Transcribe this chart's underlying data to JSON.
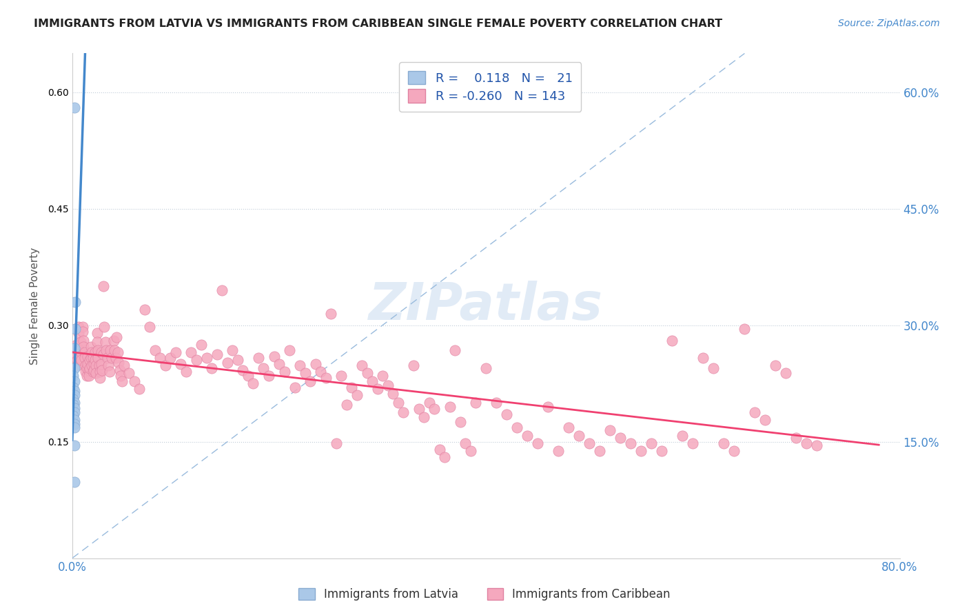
{
  "title": "IMMIGRANTS FROM LATVIA VS IMMIGRANTS FROM CARIBBEAN SINGLE FEMALE POVERTY CORRELATION CHART",
  "source": "Source: ZipAtlas.com",
  "ylabel": "Single Female Poverty",
  "xlim": [
    0.0,
    0.8
  ],
  "ylim": [
    0.0,
    0.65
  ],
  "yticks_right": [
    0.15,
    0.3,
    0.45,
    0.6
  ],
  "ytick_labels_right": [
    "15.0%",
    "30.0%",
    "45.0%",
    "60.0%"
  ],
  "watermark": "ZIPatlas",
  "color_latvia": "#aac8e8",
  "color_caribbean": "#f5a8be",
  "color_trend_latvia": "#4488cc",
  "color_trend_caribbean": "#f04070",
  "color_diagonal": "#99bbdd",
  "scatter_latvia": [
    [
      0.002,
      0.58
    ],
    [
      0.003,
      0.33
    ],
    [
      0.003,
      0.295
    ],
    [
      0.002,
      0.27
    ],
    [
      0.002,
      0.245
    ],
    [
      0.001,
      0.235
    ],
    [
      0.002,
      0.228
    ],
    [
      0.001,
      0.22
    ],
    [
      0.002,
      0.215
    ],
    [
      0.002,
      0.21
    ],
    [
      0.001,
      0.205
    ],
    [
      0.002,
      0.2
    ],
    [
      0.001,
      0.198
    ],
    [
      0.002,
      0.193
    ],
    [
      0.002,
      0.188
    ],
    [
      0.001,
      0.183
    ],
    [
      0.002,
      0.178
    ],
    [
      0.002,
      0.173
    ],
    [
      0.002,
      0.168
    ],
    [
      0.002,
      0.145
    ],
    [
      0.002,
      0.098
    ]
  ],
  "scatter_caribbean": [
    [
      0.003,
      0.268
    ],
    [
      0.004,
      0.262
    ],
    [
      0.004,
      0.275
    ],
    [
      0.005,
      0.255
    ],
    [
      0.005,
      0.248
    ],
    [
      0.006,
      0.29
    ],
    [
      0.006,
      0.298
    ],
    [
      0.007,
      0.268
    ],
    [
      0.007,
      0.258
    ],
    [
      0.008,
      0.278
    ],
    [
      0.009,
      0.265
    ],
    [
      0.009,
      0.255
    ],
    [
      0.01,
      0.298
    ],
    [
      0.01,
      0.292
    ],
    [
      0.011,
      0.28
    ],
    [
      0.011,
      0.272
    ],
    [
      0.012,
      0.265
    ],
    [
      0.012,
      0.258
    ],
    [
      0.013,
      0.248
    ],
    [
      0.013,
      0.24
    ],
    [
      0.014,
      0.235
    ],
    [
      0.014,
      0.245
    ],
    [
      0.015,
      0.26
    ],
    [
      0.015,
      0.25
    ],
    [
      0.016,
      0.242
    ],
    [
      0.016,
      0.235
    ],
    [
      0.017,
      0.255
    ],
    [
      0.017,
      0.245
    ],
    [
      0.018,
      0.272
    ],
    [
      0.018,
      0.258
    ],
    [
      0.019,
      0.265
    ],
    [
      0.019,
      0.248
    ],
    [
      0.02,
      0.24
    ],
    [
      0.02,
      0.258
    ],
    [
      0.021,
      0.25
    ],
    [
      0.021,
      0.242
    ],
    [
      0.022,
      0.265
    ],
    [
      0.022,
      0.255
    ],
    [
      0.023,
      0.248
    ],
    [
      0.023,
      0.238
    ],
    [
      0.024,
      0.29
    ],
    [
      0.024,
      0.278
    ],
    [
      0.025,
      0.268
    ],
    [
      0.025,
      0.258
    ],
    [
      0.026,
      0.248
    ],
    [
      0.027,
      0.24
    ],
    [
      0.027,
      0.232
    ],
    [
      0.028,
      0.265
    ],
    [
      0.028,
      0.25
    ],
    [
      0.029,
      0.242
    ],
    [
      0.03,
      0.35
    ],
    [
      0.03,
      0.262
    ],
    [
      0.031,
      0.298
    ],
    [
      0.032,
      0.278
    ],
    [
      0.033,
      0.268
    ],
    [
      0.034,
      0.258
    ],
    [
      0.035,
      0.248
    ],
    [
      0.036,
      0.24
    ],
    [
      0.037,
      0.268
    ],
    [
      0.038,
      0.258
    ],
    [
      0.04,
      0.28
    ],
    [
      0.041,
      0.268
    ],
    [
      0.042,
      0.258
    ],
    [
      0.043,
      0.285
    ],
    [
      0.044,
      0.265
    ],
    [
      0.045,
      0.252
    ],
    [
      0.046,
      0.242
    ],
    [
      0.047,
      0.235
    ],
    [
      0.048,
      0.228
    ],
    [
      0.05,
      0.248
    ],
    [
      0.055,
      0.238
    ],
    [
      0.06,
      0.228
    ],
    [
      0.065,
      0.218
    ],
    [
      0.07,
      0.32
    ],
    [
      0.075,
      0.298
    ],
    [
      0.08,
      0.268
    ],
    [
      0.085,
      0.258
    ],
    [
      0.09,
      0.248
    ],
    [
      0.095,
      0.258
    ],
    [
      0.1,
      0.265
    ],
    [
      0.105,
      0.25
    ],
    [
      0.11,
      0.24
    ],
    [
      0.115,
      0.265
    ],
    [
      0.12,
      0.255
    ],
    [
      0.125,
      0.275
    ],
    [
      0.13,
      0.258
    ],
    [
      0.135,
      0.245
    ],
    [
      0.14,
      0.262
    ],
    [
      0.145,
      0.345
    ],
    [
      0.15,
      0.252
    ],
    [
      0.155,
      0.268
    ],
    [
      0.16,
      0.255
    ],
    [
      0.165,
      0.242
    ],
    [
      0.17,
      0.235
    ],
    [
      0.175,
      0.225
    ],
    [
      0.18,
      0.258
    ],
    [
      0.185,
      0.245
    ],
    [
      0.19,
      0.235
    ],
    [
      0.195,
      0.26
    ],
    [
      0.2,
      0.25
    ],
    [
      0.205,
      0.24
    ],
    [
      0.21,
      0.268
    ],
    [
      0.215,
      0.22
    ],
    [
      0.22,
      0.248
    ],
    [
      0.225,
      0.238
    ],
    [
      0.23,
      0.228
    ],
    [
      0.235,
      0.25
    ],
    [
      0.24,
      0.24
    ],
    [
      0.245,
      0.232
    ],
    [
      0.25,
      0.315
    ],
    [
      0.255,
      0.148
    ],
    [
      0.26,
      0.235
    ],
    [
      0.265,
      0.198
    ],
    [
      0.27,
      0.22
    ],
    [
      0.275,
      0.21
    ],
    [
      0.28,
      0.248
    ],
    [
      0.285,
      0.238
    ],
    [
      0.29,
      0.228
    ],
    [
      0.295,
      0.218
    ],
    [
      0.3,
      0.235
    ],
    [
      0.305,
      0.222
    ],
    [
      0.31,
      0.212
    ],
    [
      0.315,
      0.2
    ],
    [
      0.32,
      0.188
    ],
    [
      0.33,
      0.248
    ],
    [
      0.335,
      0.192
    ],
    [
      0.34,
      0.182
    ],
    [
      0.345,
      0.2
    ],
    [
      0.35,
      0.192
    ],
    [
      0.355,
      0.14
    ],
    [
      0.36,
      0.13
    ],
    [
      0.365,
      0.195
    ],
    [
      0.37,
      0.268
    ],
    [
      0.375,
      0.175
    ],
    [
      0.38,
      0.148
    ],
    [
      0.385,
      0.138
    ],
    [
      0.39,
      0.2
    ],
    [
      0.4,
      0.245
    ],
    [
      0.41,
      0.2
    ],
    [
      0.42,
      0.185
    ],
    [
      0.43,
      0.168
    ],
    [
      0.44,
      0.158
    ],
    [
      0.45,
      0.148
    ],
    [
      0.46,
      0.195
    ],
    [
      0.47,
      0.138
    ],
    [
      0.48,
      0.168
    ],
    [
      0.49,
      0.158
    ],
    [
      0.5,
      0.148
    ],
    [
      0.51,
      0.138
    ],
    [
      0.52,
      0.165
    ],
    [
      0.53,
      0.155
    ],
    [
      0.54,
      0.148
    ],
    [
      0.55,
      0.138
    ],
    [
      0.56,
      0.148
    ],
    [
      0.57,
      0.138
    ],
    [
      0.58,
      0.28
    ],
    [
      0.59,
      0.158
    ],
    [
      0.6,
      0.148
    ],
    [
      0.61,
      0.258
    ],
    [
      0.62,
      0.245
    ],
    [
      0.63,
      0.148
    ],
    [
      0.64,
      0.138
    ],
    [
      0.65,
      0.295
    ],
    [
      0.66,
      0.188
    ],
    [
      0.67,
      0.178
    ],
    [
      0.68,
      0.248
    ],
    [
      0.69,
      0.238
    ],
    [
      0.7,
      0.155
    ],
    [
      0.71,
      0.148
    ],
    [
      0.72,
      0.145
    ]
  ]
}
